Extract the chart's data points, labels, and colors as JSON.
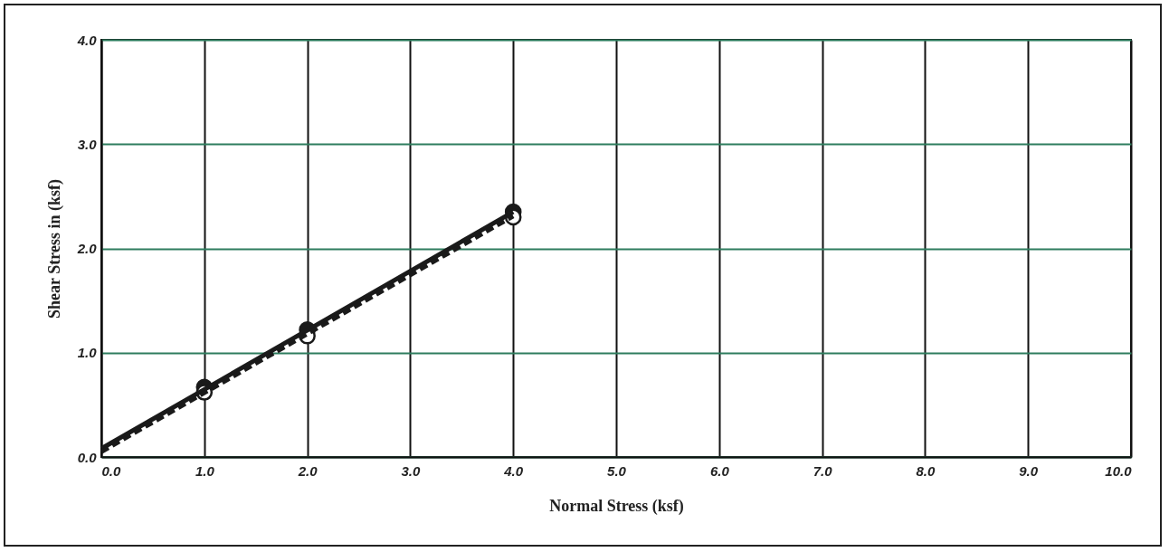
{
  "chart_data": {
    "type": "scatter",
    "xlabel": "Normal Stress (ksf)",
    "ylabel": "Shear Stress in (ksf)",
    "xlim": [
      0,
      10
    ],
    "ylim": [
      0,
      4
    ],
    "xticks": [
      {
        "value": 0,
        "label": "0.0"
      },
      {
        "value": 1,
        "label": "1.0"
      },
      {
        "value": 2,
        "label": "2.0"
      },
      {
        "value": 3,
        "label": "3.0"
      },
      {
        "value": 4,
        "label": "4.0"
      },
      {
        "value": 5,
        "label": "5.0"
      },
      {
        "value": 6,
        "label": "6.0"
      },
      {
        "value": 7,
        "label": "7.0"
      },
      {
        "value": 8,
        "label": "8.0"
      },
      {
        "value": 9,
        "label": "9.0"
      },
      {
        "value": 10,
        "label": "10.0"
      }
    ],
    "yticks": [
      {
        "value": 0,
        "label": "0.0"
      },
      {
        "value": 1,
        "label": "1.0"
      },
      {
        "value": 2,
        "label": "2.0"
      },
      {
        "value": 3,
        "label": "3.0"
      },
      {
        "value": 4,
        "label": "4.0"
      }
    ],
    "grid": true,
    "series": [
      {
        "type": "line",
        "line_style": "solid",
        "marker": "none",
        "color": "#1a1a1a",
        "x": [
          0,
          4
        ],
        "values": [
          0.08,
          2.35
        ]
      },
      {
        "type": "line",
        "line_style": "dashed",
        "marker": "none",
        "color": "#1a1a1a",
        "x": [
          0,
          4
        ],
        "values": [
          0.05,
          2.31
        ]
      },
      {
        "marker": "circle",
        "color": "#1a1a1a",
        "x": [
          1,
          2,
          4
        ],
        "values": [
          0.67,
          1.22,
          2.35
        ]
      },
      {
        "marker": "circle",
        "color": "#ffffff",
        "x": [
          1,
          2,
          4
        ],
        "values": [
          0.62,
          1.16,
          2.3
        ]
      }
    ]
  }
}
